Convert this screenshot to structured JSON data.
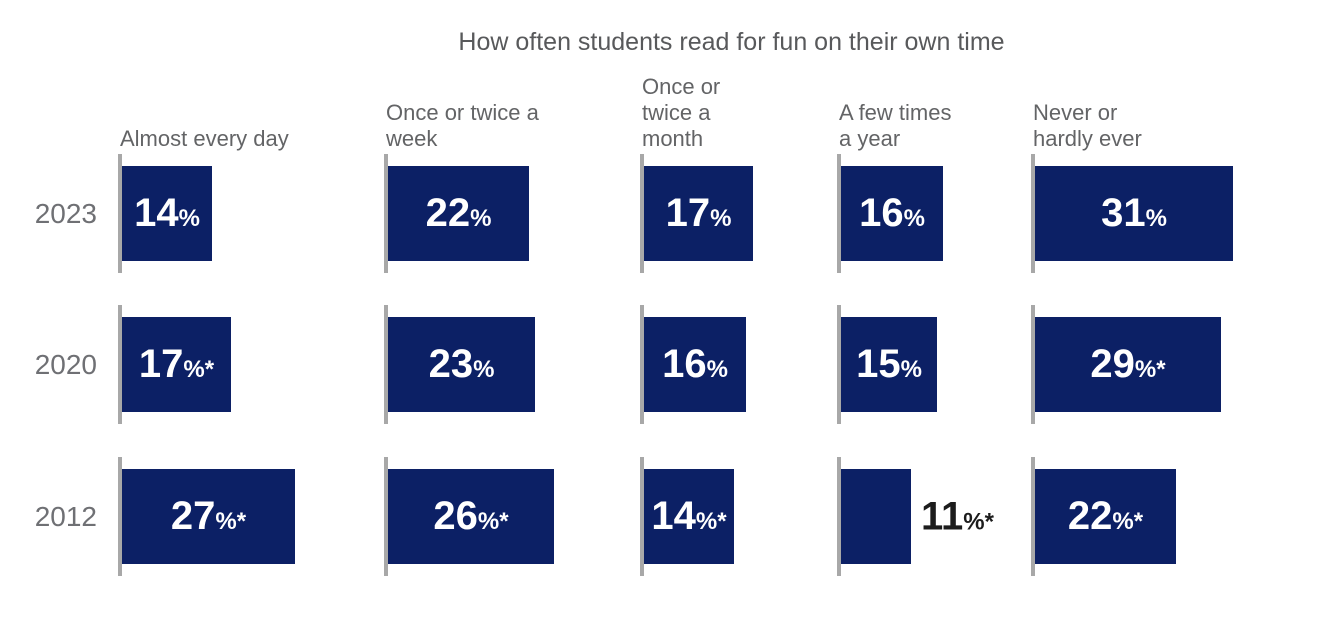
{
  "title": "How often students read for fun on their own time",
  "colors": {
    "bar": "#0c2065",
    "axis_tick": "#a8a8a8",
    "title_text": "#58595b",
    "header_text": "#636466",
    "year_text": "#6f7074",
    "inside_label": "#ffffff",
    "outside_label": "#1c1c1c"
  },
  "chart_data": {
    "type": "bar",
    "orientation": "horizontal",
    "title": "How often students read for fun on their own time",
    "unit": "percent",
    "grid": false,
    "legend": false,
    "xlim": [
      0,
      33
    ],
    "categories": [
      "Almost every day",
      "Once or twice a week",
      "Once or twice a month",
      "A few times a year",
      "Never or hardly ever"
    ],
    "category_display": [
      "Almost every day",
      "Once or twice a\nweek",
      "Once or\ntwice a\nmonth",
      "A few times\na year",
      "Never or\nhardly ever"
    ],
    "rows": [
      "2023",
      "2020",
      "2012"
    ],
    "series": [
      {
        "name": "2023",
        "values": [
          14,
          22,
          17,
          16,
          31
        ],
        "labels": [
          "14%",
          "22%",
          "17%",
          "16%",
          "31%"
        ]
      },
      {
        "name": "2020",
        "values": [
          17,
          23,
          16,
          15,
          29
        ],
        "labels": [
          "17%*",
          "23%",
          "16%",
          "15%",
          "29%*"
        ]
      },
      {
        "name": "2012",
        "values": [
          27,
          26,
          14,
          11,
          22
        ],
        "labels": [
          "27%*",
          "26%*",
          "14%*",
          "11%*",
          "22%*"
        ]
      }
    ]
  }
}
